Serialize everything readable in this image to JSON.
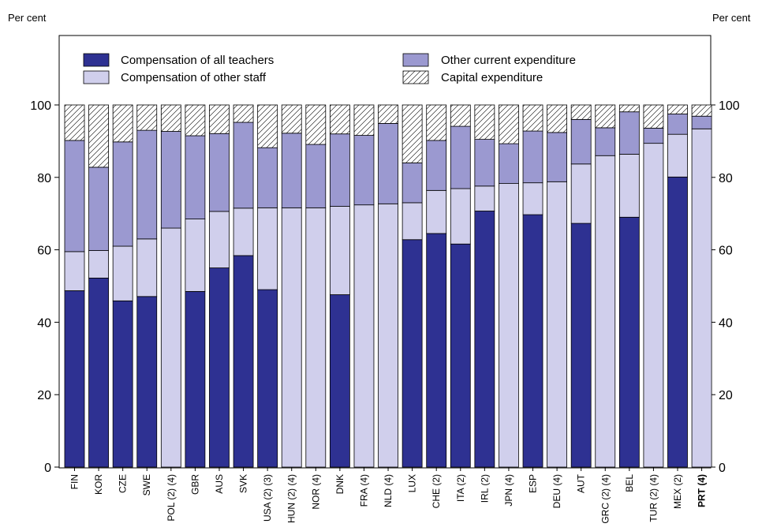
{
  "chart_data": {
    "type": "bar",
    "stacked": true,
    "left_unit_label": "Per cent",
    "right_unit_label": "Per cent",
    "ylim": [
      0,
      100
    ],
    "yticks": [
      0,
      20,
      40,
      60,
      80,
      100
    ],
    "categories": [
      "FIN",
      "KOR",
      "CZE",
      "SWE",
      "POL (2) (4)",
      "GBR",
      "AUS",
      "SVK",
      "USA (2) (3)",
      "HUN (2) (4)",
      "NOR (4)",
      "DNK",
      "FRA (4)",
      "NLD (4)",
      "LUX",
      "CHE (2)",
      "ITA (2)",
      "IRL (2)",
      "JPN (4)",
      "ESP",
      "DEU (4)",
      "AUT",
      "GRC (2) (4)",
      "BEL",
      "TUR (2) (4)",
      "MEX (2)",
      "PRT (4)"
    ],
    "highlight_category": "PRT (4)",
    "series": [
      {
        "name": "Compensation of all teachers",
        "color": "#2e3192",
        "values": [
          48.7,
          52.2,
          45.9,
          47.1,
          0,
          48.5,
          55,
          58.4,
          49,
          0,
          0,
          47.6,
          0,
          0,
          62.8,
          64.5,
          61.6,
          70.7,
          0,
          69.7,
          0,
          67.3,
          0,
          69,
          0,
          80.1,
          0
        ]
      },
      {
        "name": "Compensation of other staff",
        "color": "#d0cfec",
        "values": [
          10.8,
          7.6,
          15.1,
          15.9,
          66,
          20,
          15.6,
          13.1,
          22.6,
          71.6,
          71.6,
          24.4,
          72.4,
          72.7,
          10.2,
          11.9,
          15.3,
          6.9,
          78.3,
          8.8,
          78.8,
          16.4,
          86,
          17.4,
          89.4,
          11.8,
          93.4
        ]
      },
      {
        "name": "Other current expenditure",
        "color": "#9b99d0",
        "values": [
          30.7,
          23,
          28.8,
          30,
          26.7,
          23,
          21.5,
          23.7,
          16.6,
          20.6,
          17.5,
          20,
          19.2,
          22.2,
          11,
          13.8,
          17.2,
          12.9,
          11,
          14.3,
          13.6,
          12.3,
          7.7,
          11.7,
          4.2,
          5.6,
          3.5
        ]
      },
      {
        "name": "Capital expenditure",
        "color": "#ffffff",
        "pattern": "diagonal-hatch",
        "values": [
          9.8,
          17.2,
          10.2,
          7,
          7.3,
          8.5,
          7.9,
          4.8,
          11.8,
          7.8,
          10.9,
          8,
          8.4,
          5.1,
          16,
          9.8,
          5.9,
          9.5,
          10.7,
          7.2,
          7.6,
          4,
          6.3,
          1.9,
          6.4,
          2.5,
          3.1
        ]
      }
    ],
    "legend": {
      "placement": "top-inside",
      "order": [
        "Compensation of all teachers",
        "Compensation of other staff",
        "Other current expenditure",
        "Capital expenditure"
      ]
    }
  }
}
